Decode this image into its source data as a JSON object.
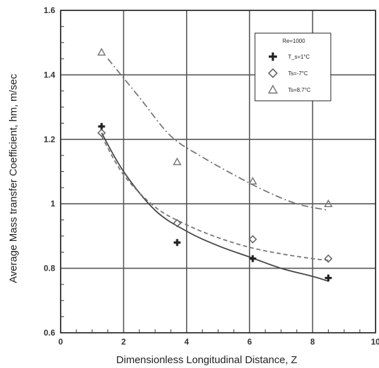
{
  "chart_data": {
    "type": "line",
    "xlabel": "Dimensionless Longitudinal  Distance,  Z",
    "ylabel": "Average Mass transfer Coefficient,  hm,  m/sec",
    "xlim": [
      0,
      10
    ],
    "ylim": [
      0.6,
      1.6
    ],
    "xticks": [
      "0",
      "2",
      "4",
      "6",
      "8",
      "10"
    ],
    "yticks": [
      "0.6",
      "0.8",
      "1",
      "1.2",
      "1.4",
      "1.6"
    ],
    "grid": true,
    "legend": {
      "title": "Re=1000",
      "position": "top-right",
      "entries": [
        "T_s=1°C",
        "Ts=-7°C",
        "Ts=8.7°C"
      ]
    },
    "series": [
      {
        "name": "T_s=1°C",
        "marker": "cross",
        "line_style": "solid",
        "points": [
          [
            1.3,
            1.24
          ],
          [
            3.7,
            0.88
          ],
          [
            6.1,
            0.83
          ],
          [
            8.5,
            0.77
          ]
        ],
        "curve": [
          [
            1.3,
            1.22
          ],
          [
            2.0,
            1.1
          ],
          [
            3.0,
            0.98
          ],
          [
            4.0,
            0.915
          ],
          [
            5.0,
            0.87
          ],
          [
            6.0,
            0.835
          ],
          [
            7.0,
            0.8
          ],
          [
            8.0,
            0.775
          ],
          [
            8.5,
            0.76
          ]
        ]
      },
      {
        "name": "Ts=-7°C",
        "marker": "diamond",
        "line_style": "dashed",
        "points": [
          [
            1.3,
            1.22
          ],
          [
            3.7,
            0.94
          ],
          [
            6.1,
            0.89
          ],
          [
            8.5,
            0.83
          ]
        ],
        "curve": [
          [
            1.3,
            1.21
          ],
          [
            2.0,
            1.09
          ],
          [
            3.0,
            0.99
          ],
          [
            4.0,
            0.935
          ],
          [
            5.0,
            0.895
          ],
          [
            6.0,
            0.865
          ],
          [
            7.0,
            0.845
          ],
          [
            8.0,
            0.83
          ],
          [
            8.5,
            0.825
          ]
        ]
      },
      {
        "name": "Ts=8.7°C",
        "marker": "triangle",
        "line_style": "dashdot",
        "points": [
          [
            1.3,
            1.47
          ],
          [
            3.7,
            1.13
          ],
          [
            6.1,
            1.07
          ],
          [
            8.5,
            1.0
          ]
        ],
        "curve": [
          [
            1.5,
            1.45
          ],
          [
            2.5,
            1.33
          ],
          [
            3.5,
            1.21
          ],
          [
            4.5,
            1.145
          ],
          [
            5.5,
            1.09
          ],
          [
            6.5,
            1.04
          ],
          [
            7.5,
            1.0
          ],
          [
            8.5,
            0.98
          ]
        ]
      }
    ]
  }
}
